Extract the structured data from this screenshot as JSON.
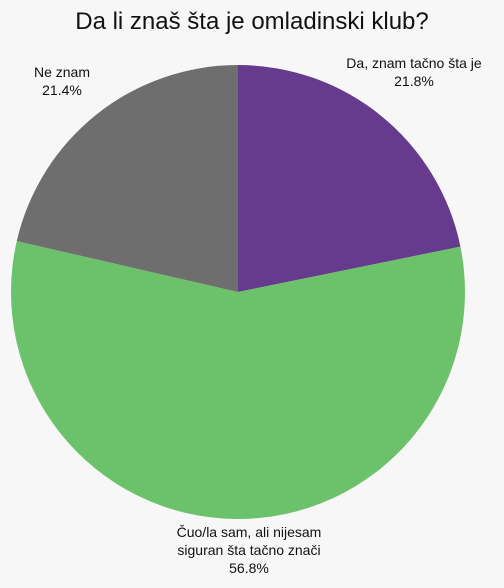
{
  "chart_data": {
    "type": "pie",
    "title": "Da li znaš šta je omladinski klub?",
    "slices": [
      {
        "label_lines": [
          "Da, znam tačno šta je"
        ],
        "value": 21.8,
        "value_label": "21.8%",
        "color": "#663a8c"
      },
      {
        "label_lines": [
          "Čuo/la sam, ali nijesam",
          "siguran šta tačno znači"
        ],
        "value": 56.8,
        "value_label": "56.8%",
        "color": "#6cc26b"
      },
      {
        "label_lines": [
          "Ne znam"
        ],
        "value": 21.4,
        "value_label": "21.4%",
        "color": "#6e6e6e"
      }
    ],
    "start_angle": "12 o'clock",
    "direction": "clockwise",
    "legend": "none"
  }
}
